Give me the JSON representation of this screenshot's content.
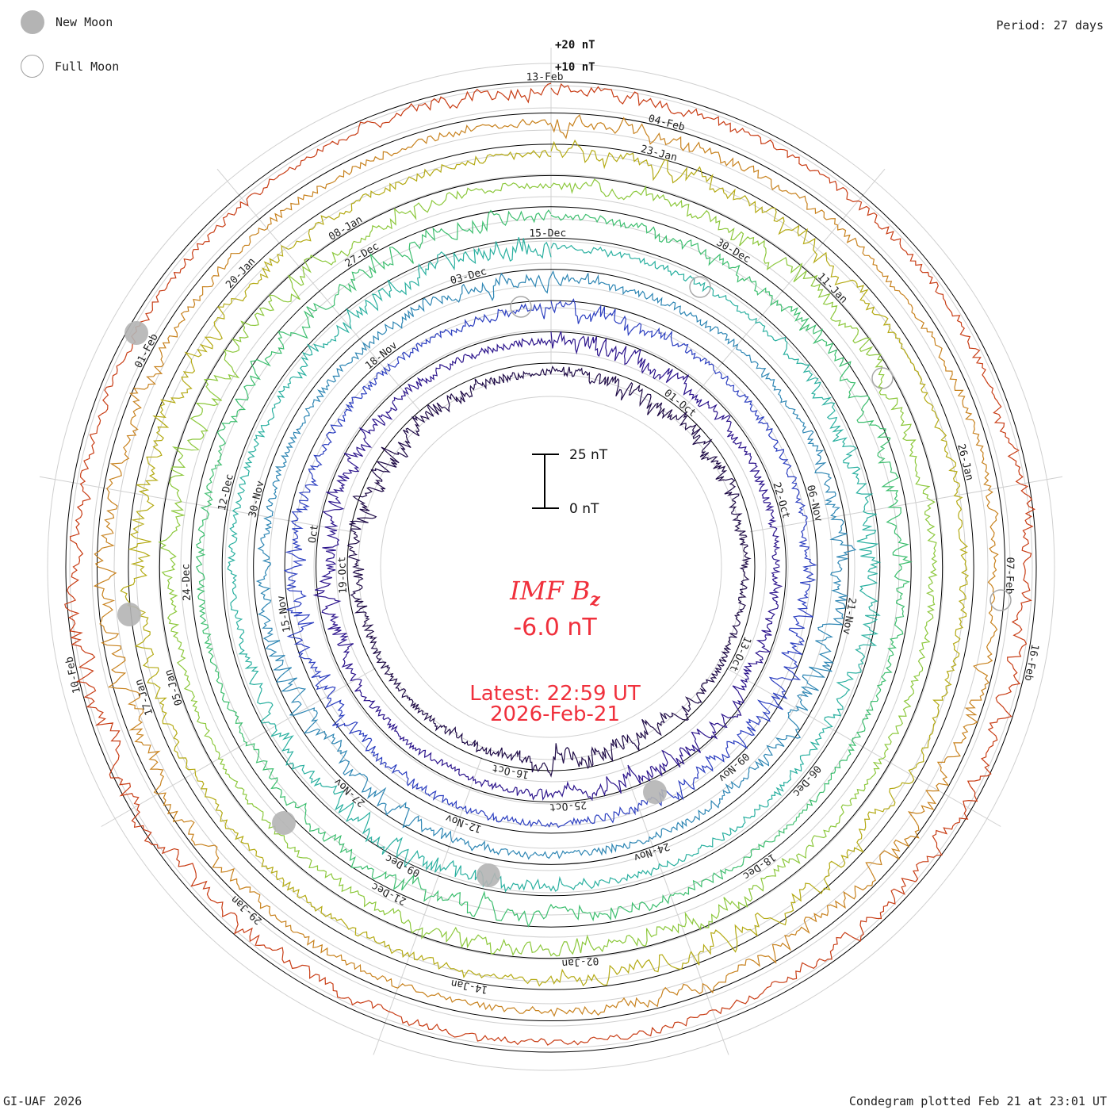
{
  "header": {
    "period": "Period: 27 days"
  },
  "legend": {
    "new_moon": "New Moon",
    "full_moon": "Full Moon"
  },
  "footer": {
    "credit": "GI-UAF 2026",
    "plotted": "Condegram plotted Feb 21 at 23:01 UT"
  },
  "center": {
    "title": "IMF B",
    "title_sub": "z",
    "value": "-6.0 nT",
    "latest_label": "Latest: 22:59 UT",
    "latest_date": "2026-Feb-21",
    "scale_top": "25 nT",
    "scale_bottom": "0 nT"
  },
  "chart_data": {
    "type": "condegram",
    "title": "IMF Bz",
    "units": "nT",
    "period_days": 27,
    "latest_value": -6.0,
    "offset_labels": [
      "+20 nT",
      "+10 nT"
    ],
    "rotations": [
      {
        "index": 0,
        "color": "#1e0a46",
        "dates": [
          "01-Oct",
          "13-Oct",
          "16-Oct",
          "19-Oct"
        ]
      },
      {
        "index": 1,
        "color": "#2c148c",
        "dates": [
          "22-Oct",
          "25-Oct",
          "Oct"
        ]
      },
      {
        "index": 2,
        "color": "#2b3ec0",
        "dates": [
          "06-Nov",
          "09-Nov",
          "12-Nov",
          "15-Nov",
          "18-Nov"
        ]
      },
      {
        "index": 3,
        "color": "#2e86b4",
        "dates": [
          "21-Nov",
          "24-Nov",
          "27-Nov",
          "30-Nov",
          "03-Dec"
        ]
      },
      {
        "index": 4,
        "color": "#2ab0a0",
        "dates": [
          "06-Dec",
          "09-Dec",
          "12-Dec",
          "15-Dec"
        ]
      },
      {
        "index": 5,
        "color": "#3cbe6e",
        "dates": [
          "18-Dec",
          "21-Dec",
          "24-Dec",
          "27-Dec",
          "30-Dec"
        ]
      },
      {
        "index": 6,
        "color": "#8cc83c",
        "dates": [
          "02-Jan",
          "05-Jan",
          "08-Jan",
          "11-Jan"
        ]
      },
      {
        "index": 7,
        "color": "#b4aa14",
        "dates": [
          "14-Jan",
          "17-Jan",
          "20-Jan",
          "23-Jan",
          "26-Jan"
        ]
      },
      {
        "index": 8,
        "color": "#c8821e",
        "dates": [
          "29-Jan",
          "01-Feb",
          "04-Feb",
          "07-Feb"
        ]
      },
      {
        "index": 9,
        "color": "#c83c14",
        "dates": [
          "10-Feb",
          "13-Feb",
          "16-Feb"
        ]
      }
    ],
    "moon_markers": {
      "new": "New Moon",
      "full": "Full Moon"
    },
    "latest_time": "22:59 UT",
    "latest_date": "2026-Feb-21"
  }
}
